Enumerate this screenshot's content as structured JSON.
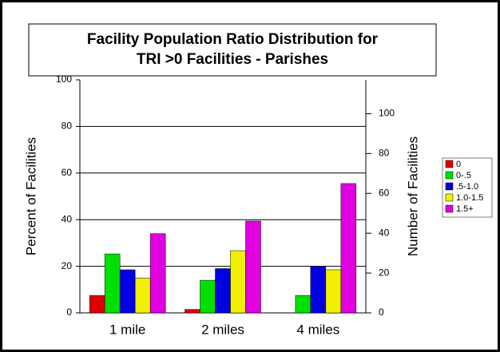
{
  "chart_data": {
    "type": "bar",
    "title": [
      "Facility Population Ratio Distribution for",
      "TRI >0 Facilities - Parishes"
    ],
    "y_label": "Percent of Facilities",
    "y2_label": "Number of Facilities",
    "categories": [
      "1 mile",
      "2 miles",
      "4 miles"
    ],
    "series": [
      {
        "name": "0",
        "color": "#e00000",
        "values": [
          7.5,
          1.5,
          0
        ]
      },
      {
        "name": "0-.5",
        "color": "#00e000",
        "values": [
          25.3,
          14,
          7.5
        ]
      },
      {
        "name": ".5-1.0",
        "color": "#0000e0",
        "values": [
          18.5,
          19,
          20
        ]
      },
      {
        "name": "1.0-1.5",
        "color": "#f0f000",
        "values": [
          15,
          26.7,
          18.5
        ]
      },
      {
        "name": "1.5+",
        "color": "#e000e0",
        "values": [
          34,
          39.4,
          55.5
        ]
      }
    ],
    "ylim": [
      0,
      100
    ],
    "yticks": [
      0,
      20,
      40,
      60,
      80,
      100
    ],
    "y2lim": [
      0,
      117
    ],
    "y2ticks": [
      0,
      20,
      40,
      60,
      80,
      100
    ],
    "grid": true,
    "legend": "right"
  }
}
